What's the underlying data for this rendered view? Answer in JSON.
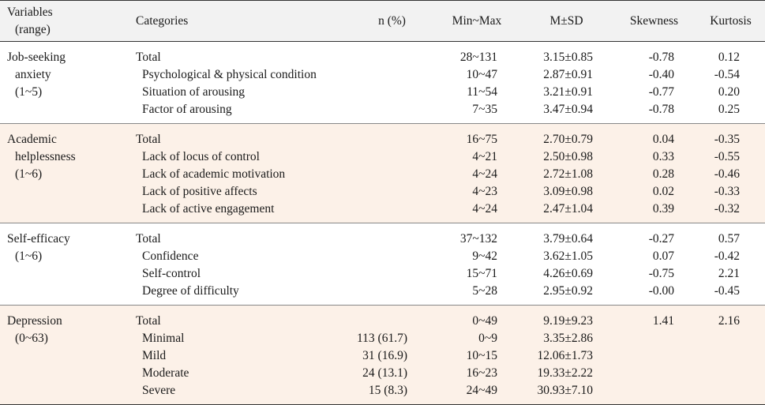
{
  "headers": {
    "variables_line1": "Variables",
    "variables_line2": "(range)",
    "categories": "Categories",
    "n_pct": "n (%)",
    "min_max": "Min~Max",
    "m_sd": "M±SD",
    "skewness": "Skewness",
    "kurtosis": "Kurtosis"
  },
  "groups": [
    {
      "variable_lines": [
        "Job-seeking",
        "anxiety",
        "(1~5)"
      ],
      "shaded": false,
      "rows": [
        {
          "category": "Total",
          "sub": false,
          "n": "",
          "minmax": "28~131",
          "msd": "3.15±0.85",
          "skew": "-0.78",
          "kurt": "0.12"
        },
        {
          "category": "Psychological & physical condition",
          "sub": true,
          "n": "",
          "minmax": "10~47",
          "msd": "2.87±0.91",
          "skew": "-0.40",
          "kurt": "-0.54"
        },
        {
          "category": "Situation of arousing",
          "sub": true,
          "n": "",
          "minmax": "11~54",
          "msd": "3.21±0.91",
          "skew": "-0.77",
          "kurt": "0.20"
        },
        {
          "category": "Factor of arousing",
          "sub": true,
          "n": "",
          "minmax": "7~35",
          "msd": "3.47±0.94",
          "skew": "-0.78",
          "kurt": "0.25"
        }
      ]
    },
    {
      "variable_lines": [
        "Academic",
        "helplessness",
        "(1~6)"
      ],
      "shaded": true,
      "rows": [
        {
          "category": "Total",
          "sub": false,
          "n": "",
          "minmax": "16~75",
          "msd": "2.70±0.79",
          "skew": "0.04",
          "kurt": "-0.35"
        },
        {
          "category": "Lack of locus of control",
          "sub": true,
          "n": "",
          "minmax": "4~21",
          "msd": "2.50±0.98",
          "skew": "0.33",
          "kurt": "-0.55"
        },
        {
          "category": "Lack of academic motivation",
          "sub": true,
          "n": "",
          "minmax": "4~24",
          "msd": "2.72±1.08",
          "skew": "0.28",
          "kurt": "-0.46"
        },
        {
          "category": "Lack of positive affects",
          "sub": true,
          "n": "",
          "minmax": "4~23",
          "msd": "3.09±0.98",
          "skew": "0.02",
          "kurt": "-0.33"
        },
        {
          "category": "Lack of active engagement",
          "sub": true,
          "n": "",
          "minmax": "4~24",
          "msd": "2.47±1.04",
          "skew": "0.39",
          "kurt": "-0.32"
        }
      ]
    },
    {
      "variable_lines": [
        "Self-efficacy",
        "(1~6)"
      ],
      "shaded": false,
      "rows": [
        {
          "category": "Total",
          "sub": false,
          "n": "",
          "minmax": "37~132",
          "msd": "3.79±0.64",
          "skew": "-0.27",
          "kurt": "0.57"
        },
        {
          "category": "Confidence",
          "sub": true,
          "n": "",
          "minmax": "9~42",
          "msd": "3.62±1.05",
          "skew": "0.07",
          "kurt": "-0.42"
        },
        {
          "category": "Self-control",
          "sub": true,
          "n": "",
          "minmax": "15~71",
          "msd": "4.26±0.69",
          "skew": "-0.75",
          "kurt": "2.21"
        },
        {
          "category": "Degree of difficulty",
          "sub": true,
          "n": "",
          "minmax": "5~28",
          "msd": "2.95±0.92",
          "skew": "-0.00",
          "kurt": "-0.45"
        }
      ]
    },
    {
      "variable_lines": [
        "Depression",
        "(0~63)"
      ],
      "shaded": true,
      "rows": [
        {
          "category": "Total",
          "sub": false,
          "n": "",
          "minmax": "0~49",
          "msd": "9.19±9.23",
          "skew": "1.41",
          "kurt": "2.16"
        },
        {
          "category": "Minimal",
          "sub": true,
          "n": "113 (61.7)",
          "minmax": "0~9",
          "msd": "3.35±2.86",
          "skew": "",
          "kurt": ""
        },
        {
          "category": "Mild",
          "sub": true,
          "n": "31 (16.9)",
          "minmax": "10~15",
          "msd": "12.06±1.73",
          "skew": "",
          "kurt": ""
        },
        {
          "category": "Moderate",
          "sub": true,
          "n": "24 (13.1)",
          "minmax": "16~23",
          "msd": "19.33±2.22",
          "skew": "",
          "kurt": ""
        },
        {
          "category": "Severe",
          "sub": true,
          "n": "15 (8.3)",
          "minmax": "24~49",
          "msd": "30.93±7.10",
          "skew": "",
          "kurt": ""
        }
      ]
    }
  ]
}
